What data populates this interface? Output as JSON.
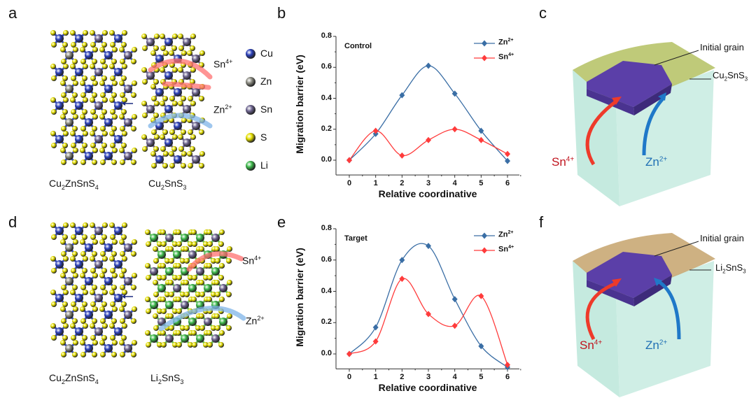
{
  "panels": {
    "a": {
      "label": "a",
      "left_formula": [
        "Cu",
        "2",
        "ZnSnS",
        "4"
      ],
      "right_formula": [
        "Cu",
        "2",
        "SnS",
        "3"
      ],
      "ion1": [
        "Sn",
        "4+"
      ],
      "ion2": [
        "Zn",
        "2+"
      ]
    },
    "b": {
      "label": "b"
    },
    "c": {
      "label": "c",
      "grain_label": "Initial grain",
      "phase_formula": [
        "Cu",
        "2",
        "SnS",
        "3"
      ],
      "ion1": [
        "Sn",
        "4+"
      ],
      "ion2": [
        "Zn",
        "2+"
      ]
    },
    "d": {
      "label": "d",
      "left_formula": [
        "Cu",
        "2",
        "ZnSnS",
        "4"
      ],
      "right_formula": [
        "Li",
        "2",
        "SnS",
        "3"
      ],
      "ion1": [
        "Sn",
        "4+"
      ],
      "ion2": [
        "Zn",
        "2+"
      ]
    },
    "e": {
      "label": "e"
    },
    "f": {
      "label": "f",
      "grain_label": "Initial grain",
      "phase_formula": [
        "Li",
        "2",
        "SnS",
        "3"
      ],
      "ion1": [
        "Sn",
        "4+"
      ],
      "ion2": [
        "Zn",
        "2+"
      ]
    }
  },
  "atom_legend": [
    {
      "label": "Cu",
      "color": "#2a3fb8"
    },
    {
      "label": "Zn",
      "color": "#8a8a80"
    },
    {
      "label": "Sn",
      "color": "#6e6590"
    },
    {
      "label": "S",
      "color": "#e6e000"
    },
    {
      "label": "Li",
      "color": "#3cb84a"
    }
  ],
  "colors": {
    "zn": "#3a6ea5",
    "sn": "#ff3b3b",
    "sn_label": "#c0141e",
    "zn_label": "#1f6fb4",
    "cu2sns3_top": "#b8c46a",
    "li2sns3_top": "#c9a874",
    "box_side": "#bfe8dc",
    "grain": "#5b3fa8"
  },
  "chart_data": [
    {
      "type": "line",
      "annotation": "Control",
      "xlabel": "Relative coordinative",
      "ylabel": "Migration barrier (eV)",
      "x": [
        0,
        1,
        2,
        3,
        4,
        5,
        6
      ],
      "xticks": [
        "0",
        "1",
        "2",
        "3",
        "4",
        "5",
        "6"
      ],
      "yticks": [
        "0.0",
        "0.2",
        "0.4",
        "0.6",
        "0.8"
      ],
      "ylim": [
        -0.1,
        0.8
      ],
      "xlim": [
        -0.5,
        6.2
      ],
      "legend": "top-right",
      "series": [
        {
          "name": [
            "Zn",
            "2+"
          ],
          "color": "#3a6ea5",
          "values": [
            0.0,
            0.17,
            0.42,
            0.61,
            0.43,
            0.19,
            -0.005
          ]
        },
        {
          "name": [
            "Sn",
            "4+"
          ],
          "color": "#ff3b3b",
          "values": [
            0.0,
            0.19,
            0.03,
            0.13,
            0.2,
            0.13,
            0.04
          ]
        }
      ]
    },
    {
      "type": "line",
      "annotation": "Target",
      "xlabel": "Relative coordinative",
      "ylabel": "Migration barrier (eV)",
      "x": [
        0,
        1,
        2,
        3,
        4,
        5,
        6
      ],
      "xticks": [
        "0",
        "1",
        "2",
        "3",
        "4",
        "5",
        "6"
      ],
      "yticks": [
        "0.0",
        "0.2",
        "0.4",
        "0.6",
        "0.8"
      ],
      "ylim": [
        -0.1,
        0.8
      ],
      "xlim": [
        -0.5,
        6.2
      ],
      "legend": "top-right",
      "series": [
        {
          "name": [
            "Zn",
            "2+"
          ],
          "color": "#3a6ea5",
          "values": [
            0.0,
            0.17,
            0.6,
            0.69,
            0.35,
            0.05,
            -0.085
          ]
        },
        {
          "name": [
            "Sn",
            "4+"
          ],
          "color": "#ff3b3b",
          "values": [
            0.0,
            0.08,
            0.48,
            0.255,
            0.18,
            0.37,
            -0.07
          ]
        }
      ]
    }
  ]
}
